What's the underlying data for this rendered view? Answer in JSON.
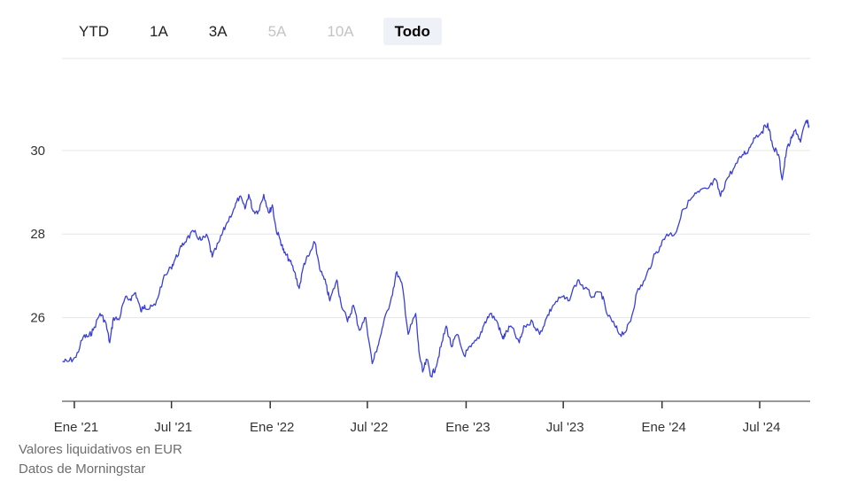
{
  "range_buttons": [
    {
      "label": "YTD",
      "state": "normal"
    },
    {
      "label": "1A",
      "state": "normal"
    },
    {
      "label": "3A",
      "state": "normal"
    },
    {
      "label": "5A",
      "state": "disabled"
    },
    {
      "label": "10A",
      "state": "disabled"
    },
    {
      "label": "Todo",
      "state": "active"
    }
  ],
  "footer": {
    "line1": "Valores liquidativos en EUR",
    "line2": "Datos de Morningstar"
  },
  "colors": {
    "line": "#3b3fd4",
    "grid": "#e6e6e6",
    "axis": "#333333",
    "active_bg": "#eef1f8"
  },
  "chart_data": {
    "type": "line",
    "title": "",
    "xlabel": "",
    "ylabel": "",
    "ylim": [
      24.0,
      32.2
    ],
    "yticks": [
      26,
      28,
      30
    ],
    "grid": true,
    "xticks": [
      {
        "date": "2021-01-01",
        "label": "Ene '21"
      },
      {
        "date": "2021-07-01",
        "label": "Jul '21"
      },
      {
        "date": "2022-01-01",
        "label": "Ene '22"
      },
      {
        "date": "2022-07-01",
        "label": "Jul '22"
      },
      {
        "date": "2023-01-01",
        "label": "Ene '23"
      },
      {
        "date": "2023-07-01",
        "label": "Jul '23"
      },
      {
        "date": "2024-01-01",
        "label": "Ene '24"
      },
      {
        "date": "2024-07-01",
        "label": "Jul '24"
      }
    ],
    "series": [
      {
        "name": "",
        "x": [
          "2020-12-10",
          "2020-12-20",
          "2021-01-04",
          "2021-01-18",
          "2021-01-28",
          "2021-02-05",
          "2021-02-18",
          "2021-02-28",
          "2021-03-08",
          "2021-03-15",
          "2021-03-25",
          "2021-04-05",
          "2021-04-15",
          "2021-04-25",
          "2021-05-05",
          "2021-05-12",
          "2021-05-19",
          "2021-06-01",
          "2021-06-15",
          "2021-06-30",
          "2021-07-08",
          "2021-07-20",
          "2021-07-30",
          "2021-08-12",
          "2021-08-25",
          "2021-09-06",
          "2021-09-15",
          "2021-09-29",
          "2021-10-10",
          "2021-10-25",
          "2021-11-05",
          "2021-11-15",
          "2021-11-22",
          "2021-11-30",
          "2021-12-10",
          "2021-12-20",
          "2021-12-30",
          "2022-01-05",
          "2022-01-12",
          "2022-01-20",
          "2022-01-27",
          "2022-02-05",
          "2022-02-15",
          "2022-02-24",
          "2022-03-05",
          "2022-03-15",
          "2022-03-25",
          "2022-04-05",
          "2022-04-15",
          "2022-04-22",
          "2022-05-05",
          "2022-05-12",
          "2022-05-25",
          "2022-06-05",
          "2022-06-16",
          "2022-06-28",
          "2022-07-10",
          "2022-07-20",
          "2022-07-30",
          "2022-08-15",
          "2022-08-25",
          "2022-09-05",
          "2022-09-15",
          "2022-09-29",
          "2022-10-05",
          "2022-10-12",
          "2022-10-20",
          "2022-10-28",
          "2022-11-05",
          "2022-11-15",
          "2022-11-25",
          "2022-12-05",
          "2022-12-15",
          "2022-12-28",
          "2023-01-10",
          "2023-01-25",
          "2023-02-05",
          "2023-02-15",
          "2023-02-28",
          "2023-03-10",
          "2023-03-15",
          "2023-03-25",
          "2023-04-10",
          "2023-04-20",
          "2023-05-05",
          "2023-05-18",
          "2023-05-31",
          "2023-06-12",
          "2023-06-28",
          "2023-07-10",
          "2023-07-28",
          "2023-08-10",
          "2023-08-25",
          "2023-09-10",
          "2023-09-20",
          "2023-10-05",
          "2023-10-15",
          "2023-10-27",
          "2023-11-05",
          "2023-11-15",
          "2023-11-30",
          "2023-12-15",
          "2023-12-28",
          "2024-01-10",
          "2024-01-25",
          "2024-02-10",
          "2024-02-28",
          "2024-03-10",
          "2024-03-28",
          "2024-04-10",
          "2024-04-19",
          "2024-04-30",
          "2024-05-15",
          "2024-05-30",
          "2024-06-10",
          "2024-06-20",
          "2024-07-05",
          "2024-07-16",
          "2024-07-25",
          "2024-08-05",
          "2024-08-12",
          "2024-08-20",
          "2024-08-30",
          "2024-09-06",
          "2024-09-15",
          "2024-09-25",
          "2024-10-01"
        ],
        "y": [
          24.95,
          24.95,
          25.05,
          25.55,
          25.55,
          25.7,
          26.1,
          25.9,
          25.4,
          26.0,
          25.95,
          26.45,
          26.45,
          26.6,
          26.15,
          26.3,
          26.2,
          26.3,
          26.9,
          27.2,
          27.4,
          27.7,
          27.9,
          28.05,
          27.85,
          27.95,
          27.45,
          27.85,
          28.2,
          28.6,
          28.9,
          28.6,
          28.95,
          28.55,
          28.55,
          28.95,
          28.5,
          28.7,
          28.1,
          27.85,
          27.55,
          27.4,
          27.1,
          26.7,
          27.3,
          27.5,
          27.8,
          27.1,
          26.8,
          26.4,
          26.9,
          26.4,
          25.9,
          26.3,
          25.7,
          26.0,
          24.9,
          25.3,
          25.8,
          26.5,
          27.1,
          26.7,
          25.6,
          26.1,
          25.2,
          24.7,
          25.0,
          24.6,
          24.8,
          25.3,
          25.8,
          25.3,
          25.6,
          25.1,
          25.3,
          25.5,
          25.9,
          26.1,
          25.9,
          25.5,
          25.6,
          25.8,
          25.4,
          25.8,
          25.9,
          25.6,
          26.0,
          26.3,
          26.5,
          26.4,
          26.9,
          26.7,
          26.5,
          26.6,
          26.1,
          25.8,
          25.6,
          25.7,
          26.0,
          26.6,
          26.9,
          27.4,
          27.7,
          28.0,
          28.0,
          28.6,
          28.9,
          29.0,
          29.1,
          29.3,
          28.9,
          29.3,
          29.6,
          29.9,
          30.0,
          30.3,
          30.45,
          30.65,
          30.1,
          29.9,
          29.3,
          30.0,
          30.3,
          30.5,
          30.2,
          30.7,
          30.6
        ]
      }
    ]
  }
}
